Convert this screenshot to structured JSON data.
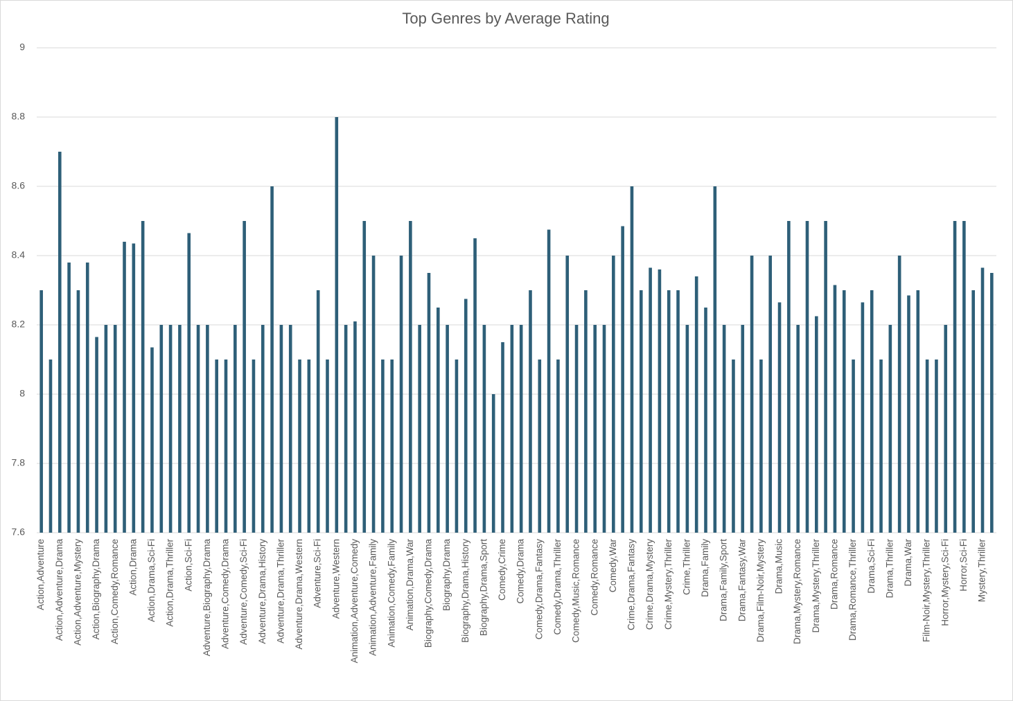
{
  "chart_data": {
    "type": "bar",
    "title": "Top Genres by Average Rating",
    "categories": [
      "Action,Adventure",
      null,
      "Action,Adventure,Drama",
      null,
      "Action,Adventure,Mystery",
      null,
      "Action,Biography,Drama",
      null,
      "Action,Comedy,Romance",
      null,
      "Action,Drama",
      null,
      "Action,Drama,Sci-Fi",
      null,
      "Action,Drama,Thriller",
      null,
      "Action,Sci-Fi",
      null,
      "Adventure,Biography,Drama",
      null,
      "Adventure,Comedy,Drama",
      null,
      "Adventure,Comedy,Sci-Fi",
      null,
      "Adventure,Drama,History",
      null,
      "Adventure,Drama,Thriller",
      null,
      "Adventure,Drama,Western",
      null,
      "Adventure,Sci-Fi",
      null,
      "Adventure,Western",
      null,
      "Animation,Adventure,Comedy",
      null,
      "Animation,Adventure,Family",
      null,
      "Animation,Comedy,Family",
      null,
      "Animation,Drama,War",
      null,
      "Biography,Comedy,Drama",
      null,
      "Biography,Drama",
      null,
      "Biography,Drama,History",
      null,
      "Biography,Drama,Sport",
      null,
      "Comedy,Crime",
      null,
      "Comedy,Drama",
      null,
      "Comedy,Drama,Fantasy",
      null,
      "Comedy,Drama,Thriller",
      null,
      "Comedy,Music,Romance",
      null,
      "Comedy,Romance",
      null,
      "Comedy,War",
      null,
      "Crime,Drama,Fantasy",
      null,
      "Crime,Drama,Mystery",
      null,
      "Crime,Mystery,Thriller",
      null,
      "Crime,Thriller",
      null,
      "Drama,Family",
      null,
      "Drama,Family,Sport",
      null,
      "Drama,Fantasy,War",
      null,
      "Drama,Film-Noir,Mystery",
      null,
      "Drama,Music",
      null,
      "Drama,Mystery,Romance",
      null,
      "Drama,Mystery,Thriller",
      null,
      "Drama,Romance",
      null,
      "Drama,Romance,Thriller",
      null,
      "Drama,Sci-Fi",
      null,
      "Drama,Thriller",
      null,
      "Drama,War",
      null,
      "Film-Noir,Mystery,Thriller",
      null,
      "Horror,Mystery,Sci-Fi",
      null,
      "Horror,Sci-Fi",
      null,
      "Mystery,Thriller",
      null
    ],
    "values": [
      8.3,
      8.1,
      8.7,
      8.38,
      8.3,
      8.38,
      8.165,
      8.2,
      8.2,
      8.44,
      8.435,
      8.5,
      8.135,
      8.2,
      8.2,
      8.2,
      8.465,
      8.2,
      8.2,
      8.1,
      8.1,
      8.2,
      8.5,
      8.1,
      8.2,
      8.6,
      8.2,
      8.2,
      8.1,
      8.1,
      8.3,
      8.1,
      8.8,
      8.2,
      8.21,
      8.5,
      8.4,
      8.1,
      8.1,
      8.4,
      8.5,
      8.2,
      8.35,
      8.25,
      8.2,
      8.1,
      8.275,
      8.45,
      8.2,
      8.0,
      8.15,
      8.2,
      8.2,
      8.3,
      8.1,
      8.475,
      8.1,
      8.4,
      8.2,
      8.3,
      8.2,
      8.2,
      8.4,
      8.485,
      8.6,
      8.3,
      8.365,
      8.36,
      8.3,
      8.3,
      8.2,
      8.34,
      8.25,
      8.6,
      8.2,
      8.1,
      8.2,
      8.4,
      8.1,
      8.4,
      8.265,
      8.5,
      8.2,
      8.5,
      8.225,
      8.5,
      8.315,
      8.3,
      8.1,
      8.265,
      8.3,
      8.1,
      8.2,
      8.4,
      8.285,
      8.3,
      8.1,
      8.1,
      8.2,
      8.5,
      8.5,
      8.3,
      8.365,
      8.35
    ],
    "color": "#2e5f78",
    "ylim": [
      7.6,
      9
    ],
    "yticks": [
      7.6,
      7.8,
      8,
      8.2,
      8.4,
      8.6,
      8.8,
      9
    ],
    "grid": true
  }
}
